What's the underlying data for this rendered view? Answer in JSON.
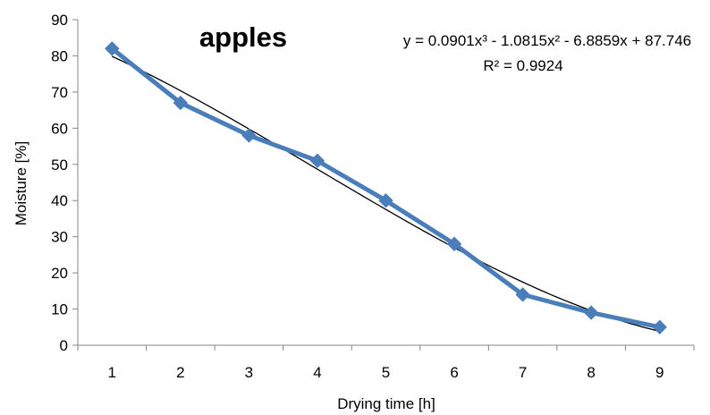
{
  "chart_data": {
    "type": "line",
    "title": "apples",
    "xlabel": "Drying time [h]",
    "ylabel": "Moisture [%]",
    "x": [
      1,
      2,
      3,
      4,
      5,
      6,
      7,
      8,
      9
    ],
    "xlim": [
      0.5,
      9.5
    ],
    "ylim": [
      0,
      90
    ],
    "y_ticks": [
      0,
      10,
      20,
      30,
      40,
      50,
      60,
      70,
      80,
      90
    ],
    "x_ticks": [
      1,
      2,
      3,
      4,
      5,
      6,
      7,
      8,
      9
    ],
    "grid": false,
    "series": [
      {
        "values": [
          82,
          67,
          58,
          51,
          40,
          28,
          14,
          9,
          5
        ],
        "color": "#4a7ebb",
        "marker": "diamond"
      }
    ],
    "trendline": {
      "kind": "polynomial",
      "coefficients": [
        0.0901,
        -1.0815,
        -6.8859,
        87.746
      ],
      "color": "#000000",
      "equation": "y = 0.0901x³ - 1.0815x² - 6.8859x + 87.746",
      "r_squared": "R² = 0.9924"
    }
  }
}
